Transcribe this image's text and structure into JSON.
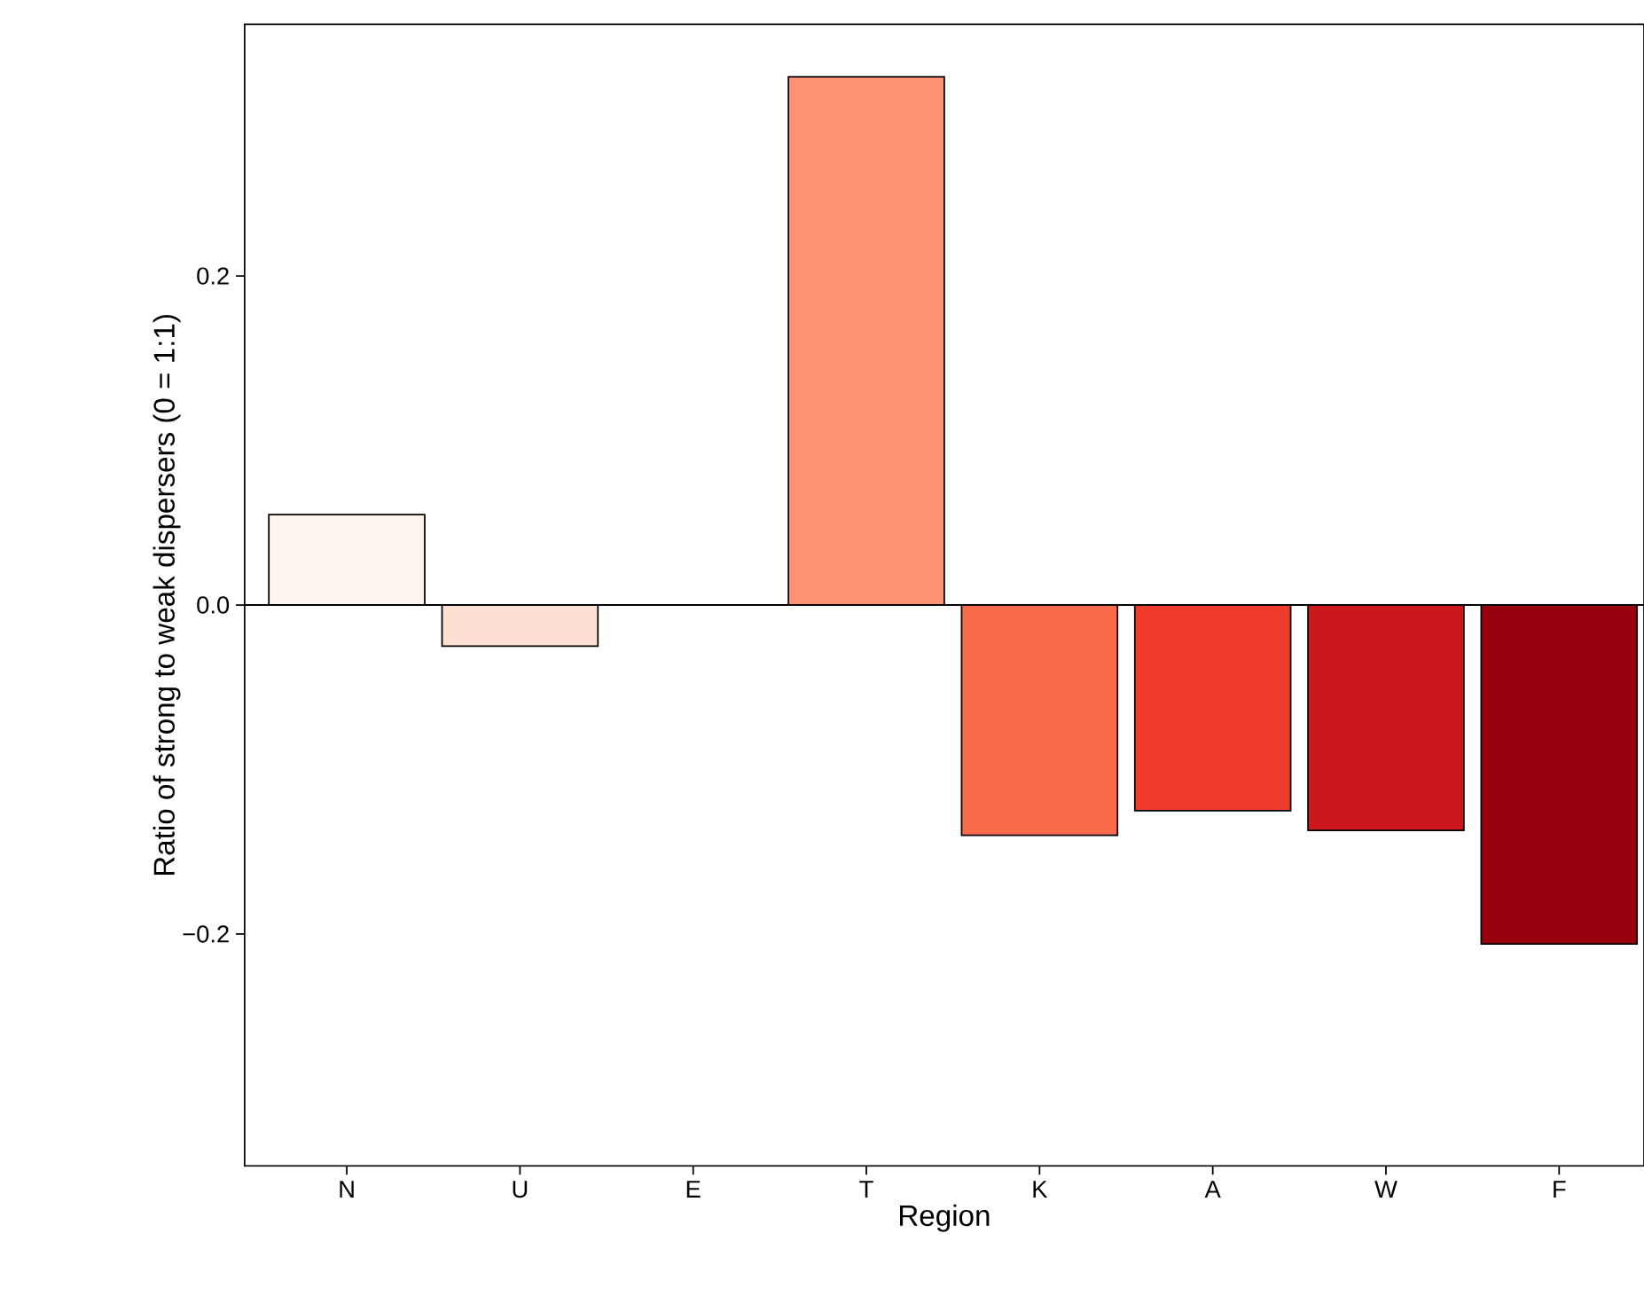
{
  "chart_data": {
    "type": "bar",
    "xlabel": "Region",
    "ylabel": "Ratio of strong to weak dispersers (0 = 1:1)",
    "categories": [
      "N",
      "U",
      "E",
      "T",
      "K",
      "A",
      "W",
      "F"
    ],
    "values": [
      0.055,
      -0.025,
      0,
      0.321,
      -0.14,
      -0.125,
      -0.137,
      -0.206
    ],
    "colors": [
      "#fff5f0",
      "#fee0d2",
      "#fcbba1",
      "#fc9272",
      "#fb6a4a",
      "#ef3b2c",
      "#cb181d",
      "#99000d"
    ],
    "ylim": [
      -0.341,
      0.353
    ],
    "yticks": [
      {
        "value": -0.2,
        "label": "−0.2"
      },
      {
        "value": 0,
        "label": "0.0"
      },
      0.2
    ],
    "ref_lines": [
      {
        "axis": "y",
        "value": 0
      }
    ],
    "grid": false
  }
}
